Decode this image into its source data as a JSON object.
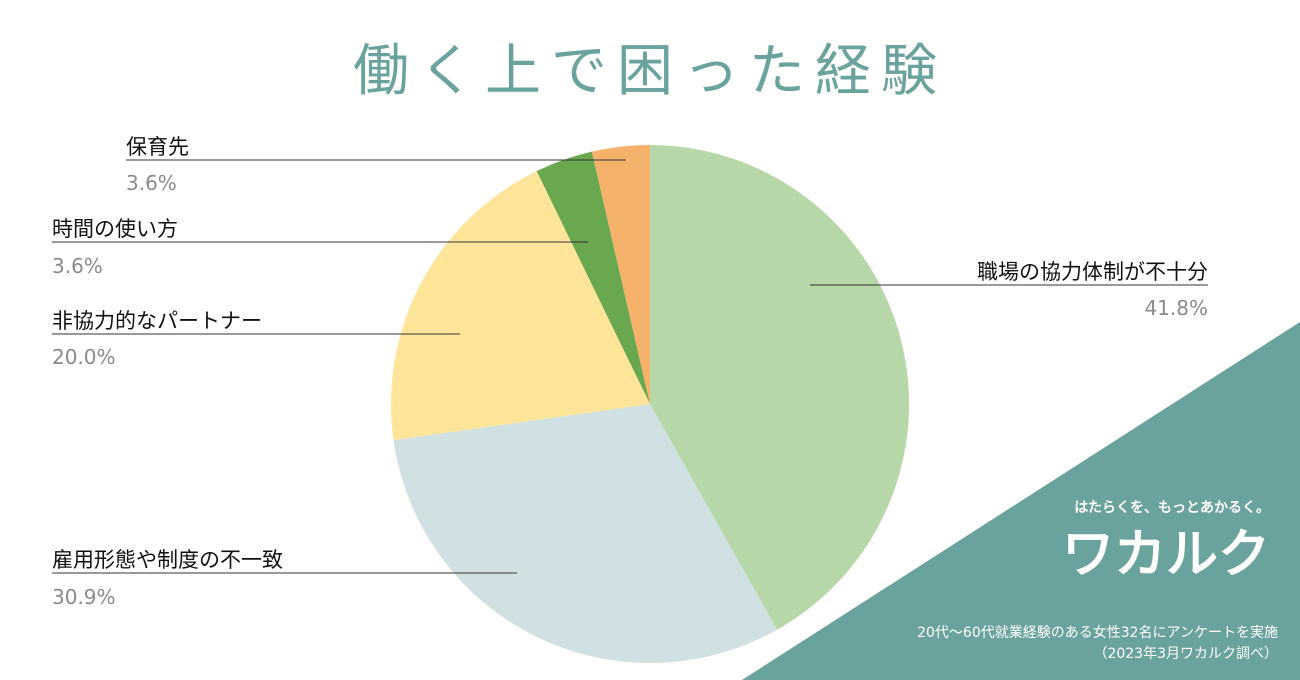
{
  "chart_data": {
    "type": "pie",
    "title": "働く上で困った経験",
    "categories": [
      "職場の協力体制が不十分",
      "雇用形態や制度の不一致",
      "非協力的なパートナー",
      "時間の使い方",
      "保育先"
    ],
    "values": [
      41.8,
      30.9,
      20.0,
      3.6,
      3.6
    ],
    "value_labels": [
      "41.8%",
      "30.9%",
      "20.0%",
      "3.6%",
      "3.6%"
    ],
    "colors": [
      "#b7d7a8",
      "#d0e0e3",
      "#ffe599",
      "#6aa84f",
      "#f6b26b"
    ],
    "start_angle": "12 o'clock",
    "direction": "clockwise",
    "legend": "none"
  },
  "branding": {
    "tagline": "はたらくを、もっとあかるく。",
    "logo_text": "ワカルク",
    "accent_color": "#6aa39e"
  },
  "footnote": {
    "line1": "20代〜60代就業経験のある女性32名にアンケートを実施",
    "line2": "（2023年3月ワカルク調べ）"
  }
}
